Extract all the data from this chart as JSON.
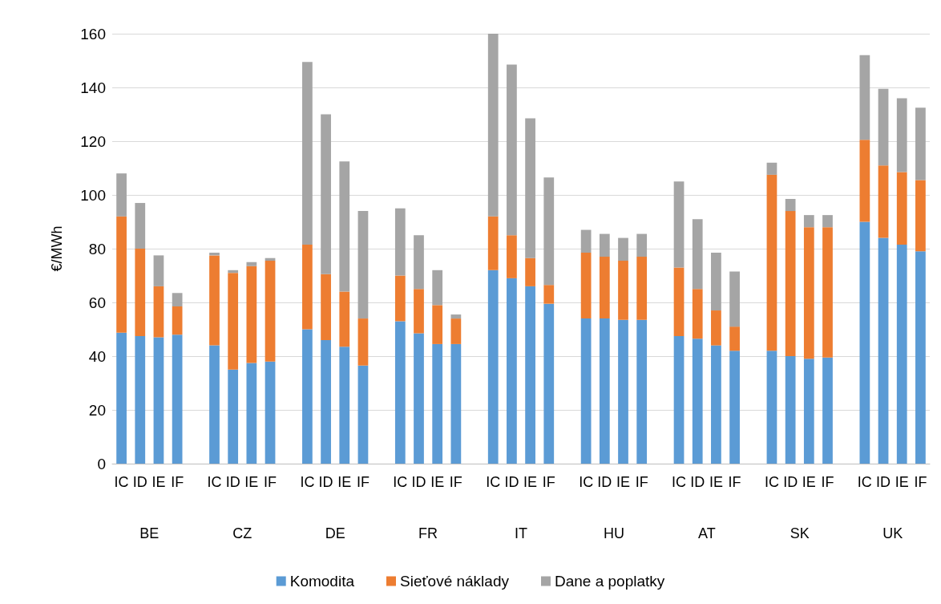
{
  "chart_data": {
    "type": "bar",
    "stacked": true,
    "ylabel": "€/MWh",
    "ylim": [
      0,
      160
    ],
    "yticks": [
      0,
      20,
      40,
      60,
      80,
      100,
      120,
      140,
      160
    ],
    "grid": "y",
    "legend": "bottom",
    "categories": [
      "IC",
      "ID",
      "IE",
      "IF",
      null,
      "IC",
      "ID",
      "IE",
      "IF",
      null,
      "IC",
      "ID",
      "IE",
      "IF",
      null,
      "IC",
      "ID",
      "IE",
      "IF",
      null,
      "IC",
      "ID",
      "IE",
      "IF",
      null,
      "IC",
      "ID",
      "IE",
      "IF",
      null,
      "IC",
      "ID",
      "IE",
      "IF",
      null,
      "IC",
      "ID",
      "IE",
      "IF",
      null,
      "IC",
      "ID",
      "IE",
      "IF"
    ],
    "annotations": [
      "BE",
      "CZ",
      "DE",
      "FR",
      "IT",
      "HU",
      "AT",
      "SK",
      "UK"
    ],
    "series": [
      {
        "name": "Komodita",
        "color": "#5b9bd5",
        "values": [
          48.7,
          47.5,
          47,
          48,
          null,
          44,
          35,
          37.5,
          38,
          null,
          50,
          46,
          43.5,
          36.5,
          null,
          53,
          48.5,
          44.5,
          44.5,
          null,
          72,
          69,
          66,
          59.5,
          null,
          54,
          54,
          53.5,
          53.5,
          null,
          47.5,
          46.5,
          44,
          42,
          null,
          42,
          40,
          39,
          39.5,
          null,
          90,
          84,
          81.5,
          79
        ]
      },
      {
        "name": "Sieťové náklady",
        "color": "#ed7d31",
        "values": [
          43.3,
          32.5,
          19,
          10.5,
          null,
          33.5,
          36,
          36,
          37.5,
          null,
          31.5,
          24.5,
          20.5,
          17.5,
          null,
          17,
          16.5,
          14.5,
          9.5,
          null,
          20,
          16,
          10.5,
          7,
          null,
          24.5,
          23,
          22,
          23.5,
          null,
          25.5,
          18.5,
          13,
          9,
          null,
          65.5,
          54,
          49,
          48.5,
          null,
          30.5,
          27,
          27,
          26.5
        ]
      },
      {
        "name": "Dane a poplatky",
        "color": "#a5a5a5",
        "values": [
          16,
          17,
          11.5,
          5,
          null,
          1,
          1,
          1.5,
          1,
          null,
          68,
          59.5,
          48.5,
          40,
          null,
          25,
          20,
          13,
          1.5,
          null,
          68,
          63.5,
          52,
          40,
          null,
          8.5,
          8.5,
          8.5,
          8.5,
          null,
          32,
          26,
          21.5,
          20.5,
          null,
          4.5,
          4.5,
          4.5,
          4.5,
          null,
          31.5,
          28.5,
          27.5,
          27
        ]
      }
    ]
  }
}
